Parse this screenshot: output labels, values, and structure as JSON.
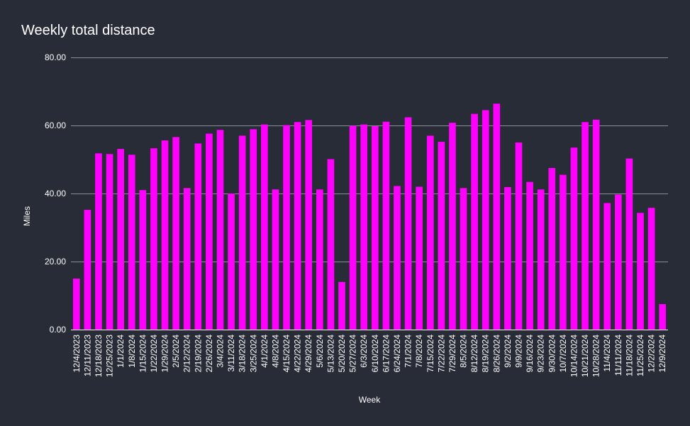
{
  "chart_data": {
    "type": "bar",
    "title": "Weekly total distance",
    "xlabel": "Week",
    "ylabel": "Miles",
    "ylim": [
      0,
      80
    ],
    "yticks": [
      "0.00",
      "20.00",
      "40.00",
      "60.00",
      "80.00"
    ],
    "grid": true,
    "bar_color": "#ff00ff",
    "categories": [
      "12/4/2023",
      "12/11/2023",
      "12/18/2023",
      "12/25/2023",
      "1/1/2024",
      "1/8/2024",
      "1/15/2024",
      "1/22/2024",
      "1/29/2024",
      "2/5/2024",
      "2/12/2024",
      "2/19/2024",
      "2/26/2024",
      "3/4/2024",
      "3/11/2024",
      "3/18/2024",
      "3/25/2024",
      "4/1/2024",
      "4/8/2024",
      "4/15/2024",
      "4/22/2024",
      "4/29/2024",
      "5/6/2024",
      "5/13/2024",
      "5/20/2024",
      "5/27/2024",
      "6/3/2024",
      "6/10/2024",
      "6/17/2024",
      "6/24/2024",
      "7/1/2024",
      "7/8/2024",
      "7/15/2024",
      "7/22/2024",
      "7/29/2024",
      "8/5/2024",
      "8/12/2024",
      "8/19/2024",
      "8/26/2024",
      "9/2/2024",
      "9/9/2024",
      "9/16/2024",
      "9/23/2024",
      "9/30/2024",
      "10/7/2024",
      "10/14/2024",
      "10/21/2024",
      "10/28/2024",
      "11/4/2024",
      "11/11/2024",
      "11/18/2024",
      "11/25/2024",
      "12/2/2024",
      "12/9/2024"
    ],
    "values": [
      15.0,
      35.2,
      51.8,
      51.6,
      53.1,
      51.4,
      41.0,
      53.3,
      55.6,
      56.6,
      41.6,
      54.7,
      57.6,
      58.7,
      40.0,
      57.0,
      58.9,
      60.3,
      41.2,
      60.1,
      61.0,
      61.6,
      41.2,
      50.1,
      14.0,
      59.9,
      60.3,
      59.8,
      61.1,
      42.2,
      62.4,
      42.0,
      57.0,
      55.2,
      60.8,
      41.6,
      63.4,
      64.5,
      66.4,
      41.9,
      55.0,
      43.4,
      41.2,
      47.5,
      45.5,
      53.5,
      61.0,
      61.7,
      37.2,
      39.7,
      50.3,
      34.3,
      35.8,
      7.5
    ]
  }
}
